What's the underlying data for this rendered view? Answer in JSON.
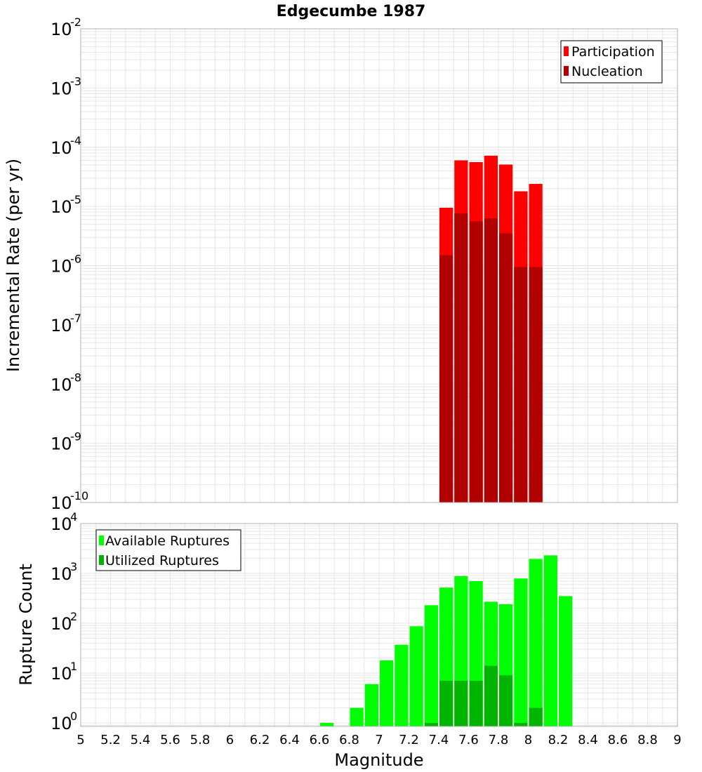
{
  "title": "Edgecumbe 1987",
  "colors": {
    "participation": "#ff0000",
    "nucleation": "#b00000",
    "available": "#00ff00",
    "utilized": "#00b400",
    "grid": "#e6e6e6",
    "frame": "#b0b0b0"
  },
  "chart_data": [
    {
      "type": "bar",
      "panel": "top",
      "ylabel": "Incremental Rate (per yr)",
      "yscale": "log",
      "ylim_exp": [
        -10,
        -2
      ],
      "y_tick_exponents": [
        -10,
        -9,
        -8,
        -7,
        -6,
        -5,
        -4,
        -3,
        -2
      ],
      "y_tick_base": "10",
      "xlim": [
        5,
        9
      ],
      "bar_width": 0.1,
      "legend": [
        "Participation",
        "Nucleation"
      ],
      "legend_position": "top-right",
      "series": [
        {
          "name": "Participation",
          "color_key": "participation",
          "x": [
            7.45,
            7.55,
            7.65,
            7.75,
            7.85,
            7.95,
            8.05
          ],
          "values": [
            9.5e-06,
            6e-05,
            5.6e-05,
            7.2e-05,
            5.1e-05,
            1.8e-05,
            2.4e-05
          ]
        },
        {
          "name": "Nucleation",
          "color_key": "nucleation",
          "x": [
            7.45,
            7.55,
            7.65,
            7.75,
            7.85,
            7.95,
            8.05
          ],
          "values": [
            1.5e-06,
            7.6e-06,
            5.6e-06,
            6.3e-06,
            3.5e-06,
            9.5e-07,
            9.5e-07
          ]
        }
      ]
    },
    {
      "type": "bar",
      "panel": "bottom",
      "ylabel": "Rupture Count",
      "xlabel": "Magnitude",
      "yscale": "log",
      "ylim_exp": [
        -0.07,
        4
      ],
      "y_tick_exponents": [
        0,
        1,
        2,
        3,
        4
      ],
      "y_tick_base": "10",
      "xlim": [
        5,
        9
      ],
      "x_ticks": [
        "5",
        "5.2",
        "5.4",
        "5.6",
        "5.8",
        "6",
        "6.2",
        "6.4",
        "6.6",
        "6.8",
        "7",
        "7.2",
        "7.4",
        "7.6",
        "7.8",
        "8",
        "8.2",
        "8.4",
        "8.6",
        "8.8",
        "9"
      ],
      "bar_width": 0.1,
      "legend": [
        "Available Ruptures",
        "Utilized Ruptures"
      ],
      "legend_position": "top-left",
      "series": [
        {
          "name": "Available Ruptures",
          "color_key": "available",
          "x": [
            6.65,
            6.85,
            6.95,
            7.05,
            7.15,
            7.25,
            7.35,
            7.45,
            7.55,
            7.65,
            7.75,
            7.85,
            7.95,
            8.05,
            8.15,
            8.25
          ],
          "values": [
            1,
            2,
            6,
            18,
            37,
            87,
            230,
            520,
            880,
            700,
            270,
            240,
            790,
            1950,
            2300,
            350
          ]
        },
        {
          "name": "Utilized Ruptures",
          "color_key": "utilized",
          "x": [
            7.35,
            7.45,
            7.55,
            7.65,
            7.75,
            7.85,
            7.95,
            8.05
          ],
          "values": [
            1,
            7,
            7,
            7,
            14,
            9,
            1,
            2
          ]
        }
      ]
    }
  ]
}
